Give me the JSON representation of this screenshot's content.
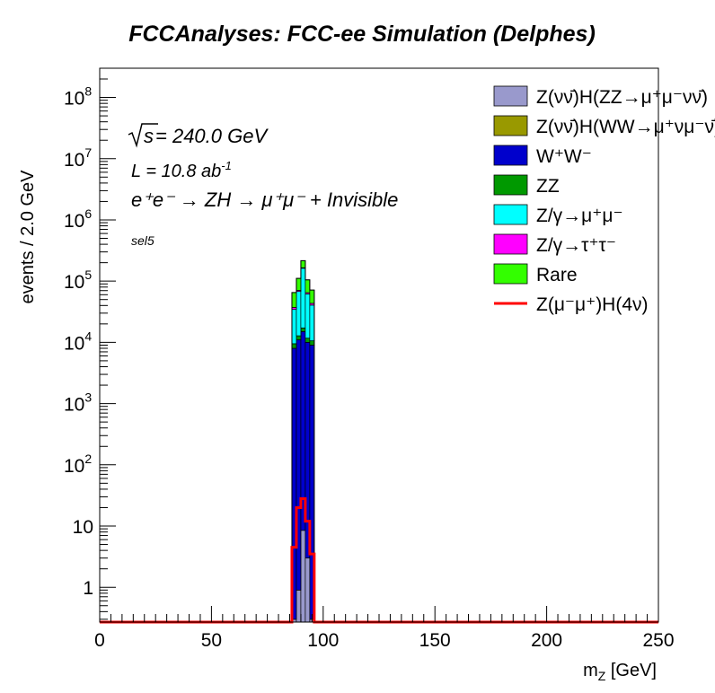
{
  "chart_data": {
    "type": "bar",
    "subtype": "stacked-histogram-log",
    "title": "FCCAnalyses: FCC-ee Simulation (Delphes)",
    "xlabel": "m_Z [GeV]",
    "ylabel": "events / 2.0 GeV",
    "yscale": "log",
    "xlim": [
      0,
      250
    ],
    "ylim": [
      0.27,
      300000000
    ],
    "x_ticks": [
      0,
      50,
      100,
      150,
      200,
      250
    ],
    "x_tick_labels": [
      "0",
      "50",
      "100",
      "150",
      "200",
      "250"
    ],
    "y_ticks": [
      1,
      10,
      100,
      1000,
      10000,
      100000,
      1000000,
      10000000,
      100000000
    ],
    "y_tick_labels": [
      {
        "base": "1",
        "exp": ""
      },
      {
        "base": "10",
        "exp": ""
      },
      {
        "base": "10",
        "exp": "2"
      },
      {
        "base": "10",
        "exp": "3"
      },
      {
        "base": "10",
        "exp": "4"
      },
      {
        "base": "10",
        "exp": "5"
      },
      {
        "base": "10",
        "exp": "6"
      },
      {
        "base": "10",
        "exp": "7"
      },
      {
        "base": "10",
        "exp": "8"
      }
    ],
    "bin_width": 2.0,
    "bin_edges": [
      86,
      88,
      90,
      92,
      94,
      96
    ],
    "stack_order": [
      "ZZ_invis",
      "WW_invis",
      "WW",
      "ZZ",
      "Zmumu",
      "Ztautau",
      "Rare"
    ],
    "series": [
      {
        "key": "ZZ_invis",
        "name": "Z(νν̄)H(ZZ→μ⁺μ⁻νν̄)",
        "color": "#9999cc",
        "values": [
          0.3,
          0.9,
          8.5,
          3.0,
          0.3
        ]
      },
      {
        "key": "WW_invis",
        "name": "Z(νν̄)H(WW→μ⁺νμ⁻ν̄)",
        "color": "#999900",
        "values": [
          0,
          0,
          0,
          0,
          0
        ]
      },
      {
        "key": "WW",
        "name": "W⁺W⁻",
        "color": "#0000cc",
        "values": [
          8000,
          11000,
          15000,
          10000,
          9000
        ]
      },
      {
        "key": "ZZ",
        "name": "ZZ",
        "color": "#009900",
        "values": [
          1500,
          1800,
          2200,
          1700,
          1600
        ]
      },
      {
        "key": "Zmumu",
        "name": "Z/γ→μ⁺μ⁻",
        "color": "#00ffff",
        "values": [
          25000,
          55000,
          145000,
          50000,
          30000
        ]
      },
      {
        "key": "Ztautau",
        "name": "Z/γ→τ⁺τ⁻",
        "color": "#ff00ff",
        "values": [
          2700,
          3000,
          3300,
          3200,
          2800
        ]
      },
      {
        "key": "Rare",
        "name": "Rare",
        "color": "#33ff00",
        "values": [
          28000,
          40000,
          50000,
          40000,
          28000
        ]
      }
    ],
    "signal": {
      "name": "Z(μ⁻μ⁺)H(4ν)",
      "color": "#ff0000",
      "values": [
        4.5,
        20.0,
        28.0,
        12.0,
        3.5
      ]
    },
    "legend_position": "top-right",
    "annotations": {
      "sqrt_s": "s",
      "energy": " = 240.0 GeV",
      "lumi_label": "L = 10.8 ab",
      "lumi_exp": "-1",
      "process": "e⁺e⁻ → ZH → μ⁺μ⁻ + Invisible",
      "selection": "sel5"
    }
  }
}
